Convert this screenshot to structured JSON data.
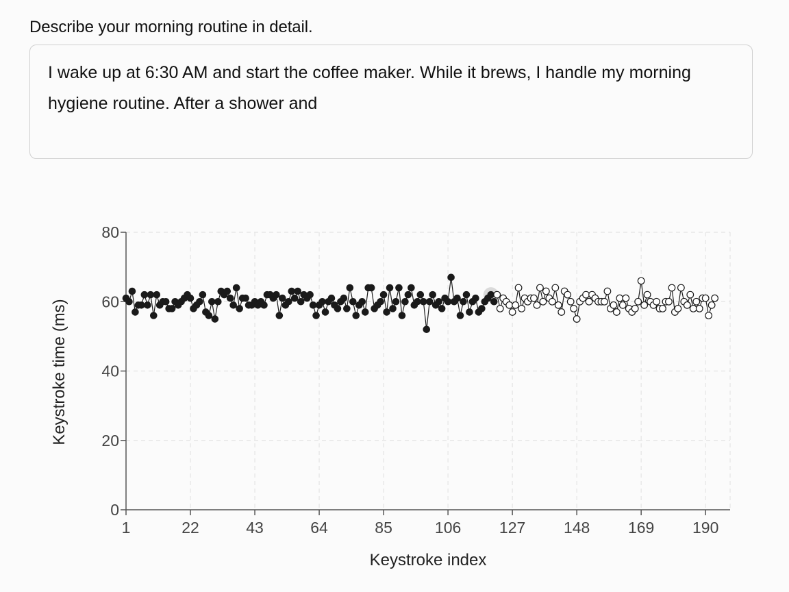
{
  "form": {
    "question": "Describe your morning routine in detail.",
    "answer": "I wake up at 6:30 AM and start the coffee maker. While it brews, I handle my morning hygiene routine. After a shower and"
  },
  "chart_data": {
    "type": "scatter",
    "xlabel": "Keystroke index",
    "ylabel": "Keystroke time (ms)",
    "xlim": [
      1,
      198
    ],
    "ylim": [
      0,
      80
    ],
    "x_ticks": [
      1,
      22,
      43,
      64,
      85,
      106,
      127,
      148,
      169,
      190
    ],
    "y_ticks": [
      0,
      20,
      40,
      60,
      80
    ],
    "grid": true,
    "current_index": 120,
    "colors": {
      "typed_fill": "#1a1a1a",
      "upcoming_fill": "#ffffff",
      "marker_stroke": "#1a1a1a",
      "line": "#1a1a1a",
      "grid": "#e4e4e4",
      "highlight": "#d3d3d3"
    },
    "series": [
      {
        "values": [
          61,
          60,
          63,
          57,
          59,
          59,
          62,
          59,
          62,
          56,
          62,
          59,
          60,
          60,
          58,
          58,
          60,
          59,
          60,
          61,
          62,
          61,
          58,
          59,
          60,
          62,
          57,
          56,
          60,
          55,
          60,
          63,
          62,
          63,
          61,
          59,
          64,
          58,
          61,
          61,
          59,
          59,
          60,
          59,
          60,
          59,
          62,
          62,
          61,
          62,
          56,
          61,
          59,
          60,
          63,
          61,
          63,
          60,
          62,
          61,
          62,
          59,
          56,
          59,
          60,
          57,
          60,
          61,
          59,
          58,
          60,
          61,
          58,
          64,
          60,
          56,
          59,
          60,
          57,
          64,
          64,
          58,
          59,
          60,
          62,
          57,
          64,
          58,
          60,
          64,
          56,
          60,
          62,
          64,
          59,
          60,
          62,
          60,
          52,
          60,
          62,
          59,
          60,
          58,
          61,
          60,
          67,
          60,
          61,
          56,
          60,
          62,
          57,
          60,
          61,
          57,
          58,
          60,
          61,
          62,
          60
        ]
      },
      {
        "values": [
          62,
          58,
          61,
          60,
          59,
          57,
          59,
          64,
          58,
          61,
          60,
          61,
          61,
          59,
          64,
          60,
          63,
          61,
          60,
          64,
          59,
          57,
          63,
          62,
          60,
          58,
          55,
          60,
          61,
          62,
          60,
          62,
          61,
          60,
          60,
          60,
          63,
          58,
          59,
          57,
          61,
          59,
          61,
          58,
          57,
          58,
          60,
          66,
          59,
          62,
          60,
          59,
          60,
          58,
          58,
          60,
          60,
          64,
          57,
          58,
          64,
          60,
          59,
          62,
          58,
          60,
          58,
          61,
          61,
          56,
          59,
          61
        ]
      }
    ]
  }
}
